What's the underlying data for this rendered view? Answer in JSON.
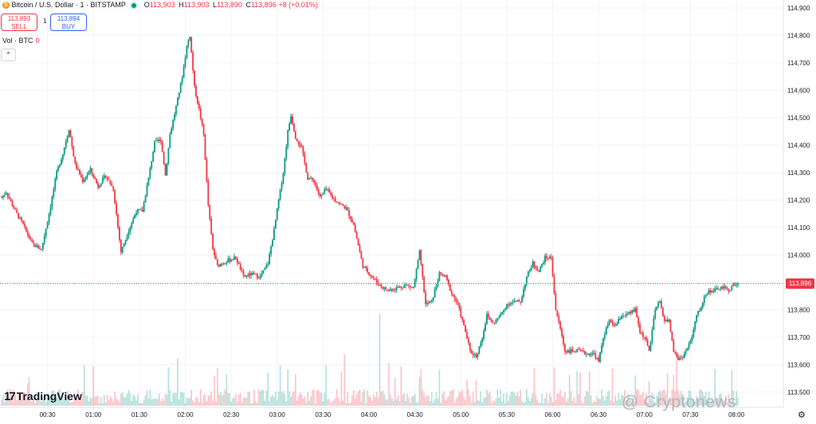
{
  "header": {
    "symbol": "Bitcoin / U.S. Dollar · 1 · BITSTAMP",
    "coin_glyph": "₿",
    "o_label": "O",
    "o_value": "113,903",
    "h_label": "H",
    "h_value": "113,903",
    "l_label": "L",
    "l_value": "113,890",
    "c_label": "C",
    "c_value": "113,896",
    "change": "+8 (+0.01%)"
  },
  "trade": {
    "sell_price": "113,893",
    "sell_label": "SELL",
    "spread": "1",
    "buy_price": "113,894",
    "buy_label": "BUY"
  },
  "volume_label": "Vol · BTC",
  "volume_value": "0",
  "brand": "TradingView",
  "brand_mark": "17",
  "watermark": "Cryptonews",
  "current_price_tag": "113,896",
  "colors": {
    "up": "#089981",
    "down": "#f23645",
    "grid": "#f0f3fa",
    "price_line": "#f23645"
  },
  "icons": [
    "bitcoin-icon",
    "status-dot-icon",
    "collapse-chevron-icon",
    "settings-gear-icon"
  ],
  "chart_data": {
    "type": "candlestick",
    "ylim": [
      113500,
      114950
    ],
    "yticks": [
      "113,500",
      "113,600",
      "113,700",
      "113,800",
      "113,900",
      "114,000",
      "114,100",
      "114,200",
      "114,300",
      "114,400",
      "114,500",
      "114,600",
      "114,700",
      "114,800",
      "114,900"
    ],
    "ytick_values": [
      113500,
      113600,
      113700,
      113800,
      113900,
      114000,
      114100,
      114200,
      114300,
      114400,
      114500,
      114600,
      114700,
      114800,
      114900
    ],
    "xticks": [
      "00:30",
      "01:00",
      "01:30",
      "02:00",
      "02:30",
      "03:00",
      "03:30",
      "04:00",
      "04:30",
      "05:00",
      "05:30",
      "06:00",
      "06:30",
      "07:00",
      "07:30",
      "08:00"
    ],
    "xtick_minutes": [
      30,
      60,
      90,
      120,
      150,
      180,
      210,
      240,
      270,
      300,
      330,
      360,
      390,
      420,
      450,
      480
    ],
    "x_range_minutes": [
      0,
      500
    ],
    "last_price": 113896,
    "close_path_anchors": [
      [
        0,
        114210
      ],
      [
        3,
        114230
      ],
      [
        8,
        114170
      ],
      [
        14,
        114110
      ],
      [
        20,
        114040
      ],
      [
        26,
        114020
      ],
      [
        31,
        114150
      ],
      [
        36,
        114300
      ],
      [
        40,
        114370
      ],
      [
        44,
        114460
      ],
      [
        48,
        114330
      ],
      [
        53,
        114270
      ],
      [
        58,
        114310
      ],
      [
        63,
        114250
      ],
      [
        68,
        114290
      ],
      [
        73,
        114240
      ],
      [
        78,
        114010
      ],
      [
        83,
        114090
      ],
      [
        88,
        114160
      ],
      [
        92,
        114160
      ],
      [
        96,
        114280
      ],
      [
        100,
        114410
      ],
      [
        104,
        114420
      ],
      [
        107,
        114290
      ],
      [
        110,
        114440
      ],
      [
        114,
        114540
      ],
      [
        118,
        114650
      ],
      [
        121,
        114760
      ],
      [
        123,
        114800
      ],
      [
        126,
        114610
      ],
      [
        129,
        114530
      ],
      [
        132,
        114440
      ],
      [
        135,
        114180
      ],
      [
        138,
        114020
      ],
      [
        141,
        113960
      ],
      [
        144,
        113970
      ],
      [
        148,
        113980
      ],
      [
        153,
        113990
      ],
      [
        158,
        113920
      ],
      [
        163,
        113930
      ],
      [
        169,
        113920
      ],
      [
        174,
        113970
      ],
      [
        178,
        114090
      ],
      [
        181,
        114200
      ],
      [
        184,
        114300
      ],
      [
        187,
        114450
      ],
      [
        189,
        114510
      ],
      [
        192,
        114430
      ],
      [
        196,
        114390
      ],
      [
        200,
        114280
      ],
      [
        204,
        114270
      ],
      [
        208,
        114210
      ],
      [
        212,
        114240
      ],
      [
        216,
        114210
      ],
      [
        220,
        114190
      ],
      [
        225,
        114170
      ],
      [
        230,
        114110
      ],
      [
        236,
        113960
      ],
      [
        242,
        113920
      ],
      [
        247,
        113890
      ],
      [
        252,
        113870
      ],
      [
        258,
        113880
      ],
      [
        264,
        113890
      ],
      [
        269,
        113880
      ],
      [
        273,
        114010
      ],
      [
        277,
        113820
      ],
      [
        281,
        113830
      ],
      [
        286,
        113930
      ],
      [
        290,
        113920
      ],
      [
        294,
        113860
      ],
      [
        298,
        113820
      ],
      [
        303,
        113720
      ],
      [
        306,
        113650
      ],
      [
        310,
        113630
      ],
      [
        314,
        113700
      ],
      [
        317,
        113780
      ],
      [
        321,
        113750
      ],
      [
        326,
        113780
      ],
      [
        330,
        113820
      ],
      [
        335,
        113830
      ],
      [
        339,
        113830
      ],
      [
        343,
        113920
      ],
      [
        347,
        113970
      ],
      [
        351,
        113940
      ],
      [
        355,
        113990
      ],
      [
        359,
        113990
      ],
      [
        362,
        113800
      ],
      [
        365,
        113730
      ],
      [
        368,
        113650
      ],
      [
        372,
        113650
      ],
      [
        377,
        113650
      ],
      [
        382,
        113640
      ],
      [
        387,
        113640
      ],
      [
        390,
        113610
      ],
      [
        393,
        113700
      ],
      [
        397,
        113760
      ],
      [
        401,
        113740
      ],
      [
        405,
        113780
      ],
      [
        408,
        113780
      ],
      [
        411,
        113790
      ],
      [
        414,
        113800
      ],
      [
        417,
        113720
      ],
      [
        420,
        113700
      ],
      [
        423,
        113650
      ],
      [
        427,
        113800
      ],
      [
        430,
        113830
      ],
      [
        433,
        113760
      ],
      [
        436,
        113760
      ],
      [
        439,
        113650
      ],
      [
        442,
        113620
      ],
      [
        445,
        113630
      ],
      [
        448,
        113660
      ],
      [
        451,
        113700
      ],
      [
        454,
        113780
      ],
      [
        457,
        113810
      ],
      [
        460,
        113860
      ],
      [
        463,
        113870
      ],
      [
        466,
        113870
      ],
      [
        469,
        113880
      ],
      [
        472,
        113880
      ],
      [
        475,
        113870
      ],
      [
        478,
        113890
      ],
      [
        481,
        113896
      ]
    ]
  }
}
